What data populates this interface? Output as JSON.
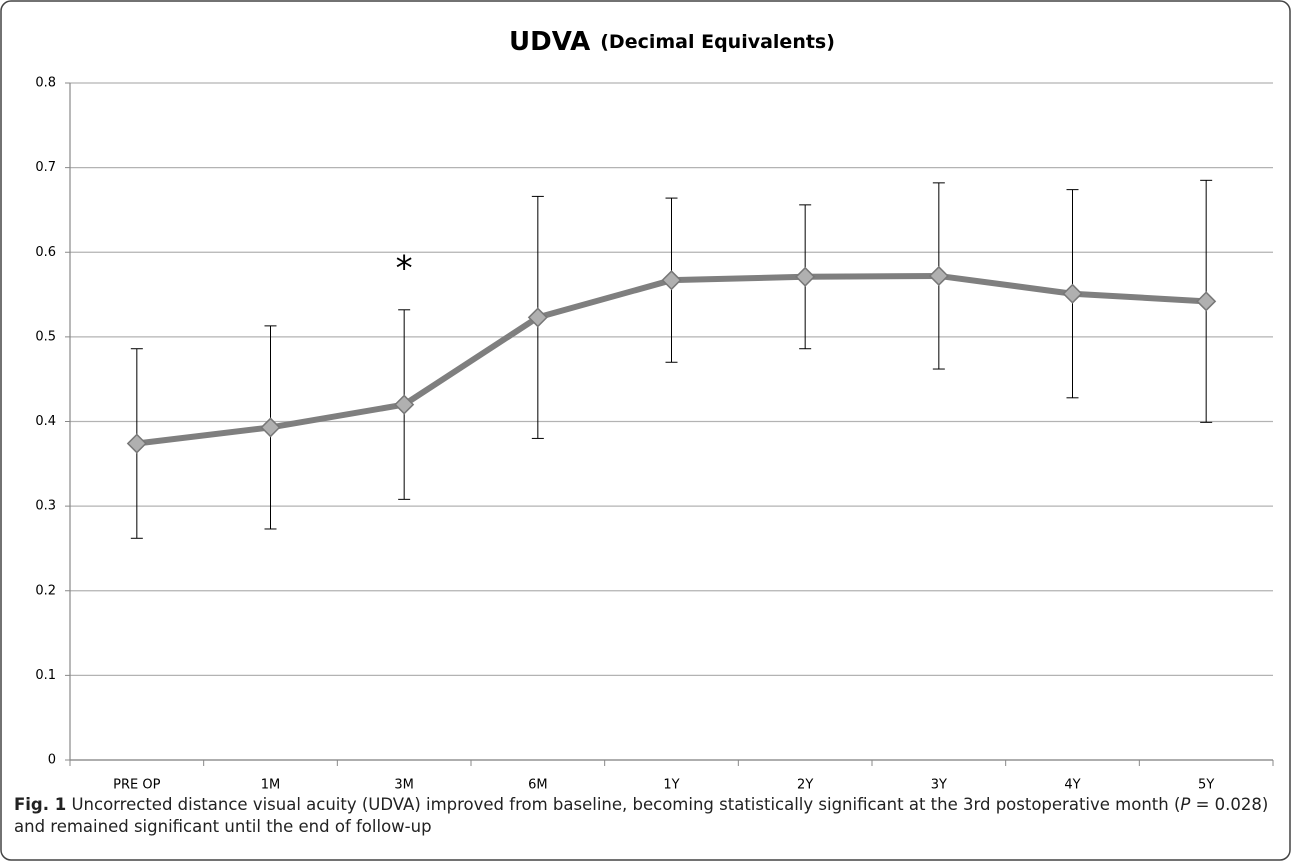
{
  "chart_data": {
    "type": "line",
    "title": "UDVA",
    "subtitle": "(Decimal Equivalents)",
    "categories": [
      "PRE OP",
      "1M",
      "3M",
      "6M",
      "1Y",
      "2Y",
      "3Y",
      "4Y",
      "5Y"
    ],
    "series": [
      {
        "name": "UDVA",
        "color": "#7f7f7f",
        "values": [
          0.374,
          0.393,
          0.42,
          0.523,
          0.567,
          0.571,
          0.572,
          0.551,
          0.542
        ],
        "errors": [
          0.112,
          0.12,
          0.112,
          0.143,
          0.097,
          0.085,
          0.11,
          0.123,
          0.143
        ]
      }
    ],
    "ylim": [
      0,
      0.8
    ],
    "yticks": [
      0,
      0.1,
      0.2,
      0.3,
      0.4,
      0.5,
      0.6,
      0.7,
      0.8
    ],
    "grid": true,
    "annotations": [
      {
        "text": "*",
        "category": 2
      }
    ],
    "caption": {
      "label": "Fig. 1",
      "text_before": " Uncorrected distance visual acuity (UDVA) improved from baseline, becoming statistically significant at the 3rd postoperative month (",
      "p": "P",
      "text_after": " = 0.028) and remained significant until the end of follow-up"
    }
  }
}
